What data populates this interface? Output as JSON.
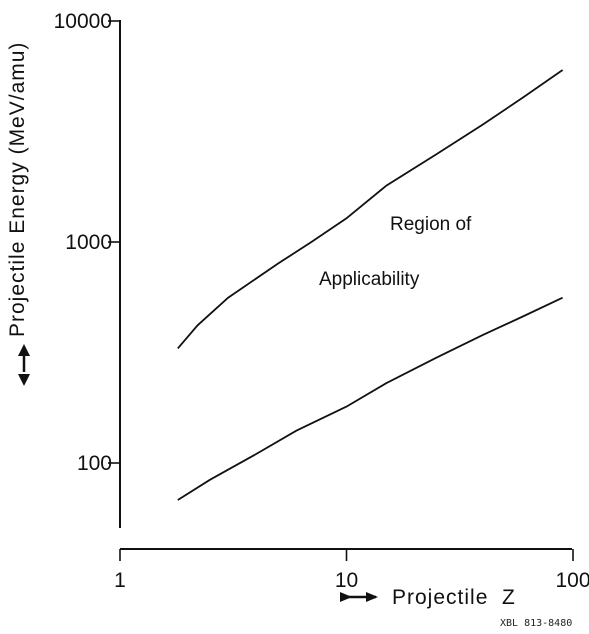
{
  "chart_data": {
    "type": "line",
    "title": "",
    "xlabel": "Projectile  Z",
    "ylabel": "Projectile Energy (MeV/amu)",
    "x_scale": "log",
    "y_scale": "log",
    "xlim": [
      1,
      100
    ],
    "ylim": [
      50,
      10000
    ],
    "grid": false,
    "x_ticks": [
      {
        "value": 1,
        "label": "1"
      },
      {
        "value": 10,
        "label": "10"
      },
      {
        "value": 100,
        "label": "100"
      }
    ],
    "y_ticks": [
      {
        "value": 100,
        "label": "100"
      },
      {
        "value": 1000,
        "label": "1000"
      },
      {
        "value": 10000,
        "label": "10000"
      }
    ],
    "series": [
      {
        "x": [
          1.8,
          2.2,
          3,
          5,
          7,
          10,
          15,
          25,
          40,
          60,
          90
        ],
        "y": [
          330,
          420,
          560,
          800,
          1000,
          1280,
          1800,
          2500,
          3400,
          4500,
          6000
        ]
      },
      {
        "x": [
          1.8,
          2.5,
          4,
          6,
          10,
          15,
          25,
          40,
          60,
          90
        ],
        "y": [
          68,
          84,
          110,
          140,
          180,
          230,
          300,
          380,
          460,
          560
        ]
      }
    ],
    "annotations": [
      {
        "text": "Region of",
        "x": 30,
        "y": 1050
      },
      {
        "text": "Applicability",
        "x": 23,
        "y": 590
      }
    ],
    "catalog_number": "XBL 813-8480"
  }
}
